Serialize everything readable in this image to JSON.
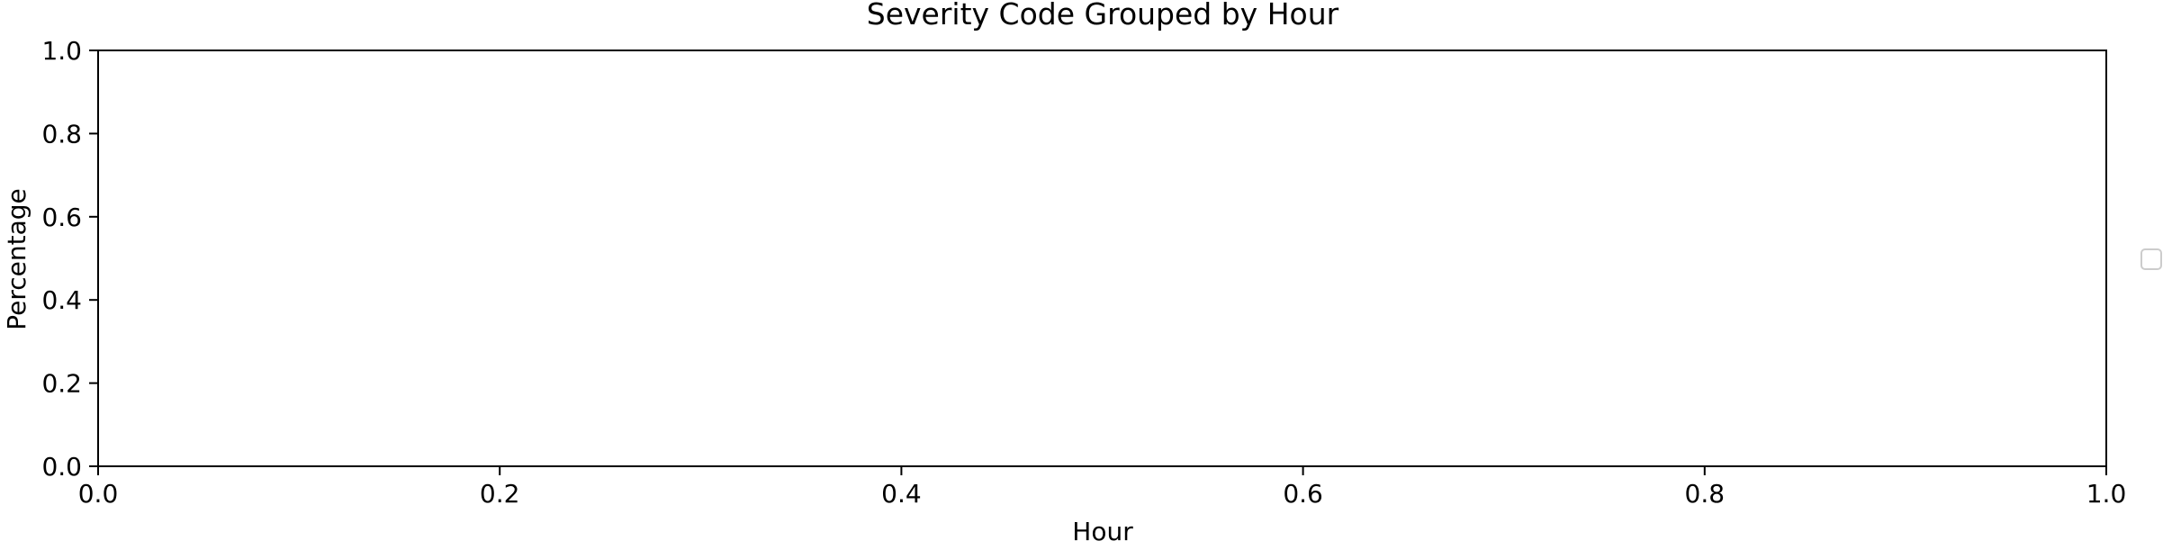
{
  "chart_data": {
    "type": "bar",
    "title": "Severity Code Grouped by Hour",
    "xlabel": "Hour",
    "ylabel": "Percentage",
    "xlim": [
      0.0,
      1.0
    ],
    "ylim": [
      0.0,
      1.0
    ],
    "x_ticks": [
      "0.0",
      "0.2",
      "0.4",
      "0.6",
      "0.8",
      "1.0"
    ],
    "y_ticks": [
      "0.0",
      "0.2",
      "0.4",
      "0.6",
      "0.8",
      "1.0"
    ],
    "series": [],
    "grid": false,
    "legend": {
      "placement": "center-right outside",
      "entries": []
    },
    "colors": {
      "axes": "#000000",
      "text": "#000000",
      "legend_border": "#cccccc",
      "background": "#ffffff"
    }
  }
}
